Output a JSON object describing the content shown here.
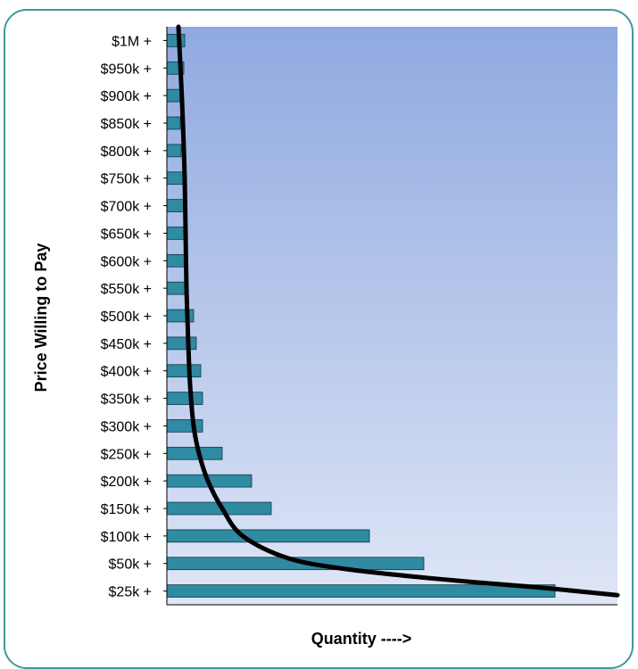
{
  "chart_data": {
    "type": "bar",
    "orientation": "horizontal",
    "categories": [
      "$25k +",
      "$50k +",
      "$100k +",
      "$150k +",
      "$200k +",
      "$250k +",
      "$300k +",
      "$350k +",
      "$400k +",
      "$450k +",
      "$500k +",
      "$550k +",
      "$600k +",
      "$650k +",
      "$700k +",
      "$750k +",
      "$800k +",
      "$850k +",
      "$900k +",
      "$950k +",
      "$1M +"
    ],
    "values": [
      435,
      288,
      227,
      117,
      95,
      62,
      40,
      40,
      38,
      33,
      30,
      20,
      20,
      20,
      20,
      18,
      16,
      15,
      16,
      19,
      20
    ],
    "xlabel": "Quantity ---->",
    "ylabel": "Price Willing to Pay",
    "xlim": [
      0,
      505
    ],
    "grid": false,
    "curve": [
      [
        13,
        20.5
      ],
      [
        16,
        18.5
      ],
      [
        18,
        17
      ],
      [
        20,
        15
      ],
      [
        21,
        13
      ],
      [
        22,
        11
      ],
      [
        24,
        9
      ],
      [
        26,
        7.5
      ],
      [
        30,
        6
      ],
      [
        36,
        5
      ],
      [
        46,
        4
      ],
      [
        62,
        3
      ],
      [
        85,
        2
      ],
      [
        135,
        1.2
      ],
      [
        200,
        0.8
      ],
      [
        300,
        0.45
      ],
      [
        420,
        0.12
      ],
      [
        505,
        -0.15
      ]
    ],
    "colors": {
      "bar_fill": "#2f8aa2",
      "bar_stroke": "#0c3a48",
      "curve": "#000000",
      "plot_bg_top": "#8fa9e0",
      "plot_bg_bottom": "#dfe6f6",
      "frame": "#3c9a9a"
    }
  }
}
